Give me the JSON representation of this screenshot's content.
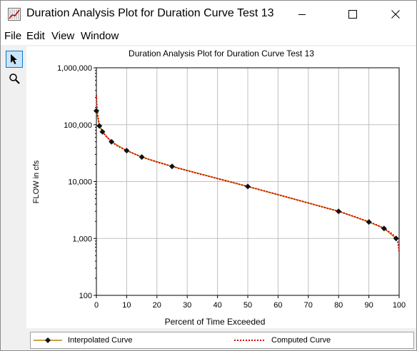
{
  "window": {
    "title": "Duration Analysis Plot for Duration Curve Test 13",
    "icon": "chart-app-icon",
    "controls": {
      "minimize": "minimize-icon",
      "maximize": "maximize-icon",
      "close": "close-icon"
    }
  },
  "menu": {
    "items": [
      "File",
      "Edit",
      "View",
      "Window"
    ]
  },
  "toolbar": {
    "tools": [
      "pointer-icon",
      "magnifier-icon"
    ]
  },
  "chart_data": {
    "type": "line",
    "title": "Duration Analysis Plot for Duration Curve Test 13",
    "xlabel": "Percent of Time Exceeded",
    "ylabel": "FLOW in cfs",
    "xlim": [
      0,
      100
    ],
    "ylim": [
      100,
      1000000
    ],
    "yscale": "log",
    "grid": true,
    "legend_position": "bottom",
    "x_ticks": [
      "0",
      "10",
      "20",
      "30",
      "40",
      "50",
      "60",
      "70",
      "80",
      "90",
      "100"
    ],
    "y_ticks": [
      "100",
      "1,000",
      "10,000",
      "100,000",
      "1,000,000"
    ],
    "series": [
      {
        "name": "Interpolated Curve",
        "color": "#b8860b",
        "marker": "diamond",
        "x": [
          0,
          1,
          2,
          5,
          10,
          15,
          25,
          50,
          80,
          90,
          95,
          99
        ],
        "y": [
          175000,
          95000,
          75000,
          50000,
          35000,
          27000,
          18500,
          8200,
          3000,
          1950,
          1500,
          1000
        ]
      },
      {
        "name": "Computed Curve",
        "color": "#e00000",
        "line_style": "dotted",
        "x": [
          0,
          0.1,
          0.3,
          0.5,
          1,
          2,
          3,
          5,
          7,
          10,
          15,
          20,
          25,
          30,
          40,
          50,
          60,
          70,
          80,
          85,
          90,
          93,
          95,
          97,
          98,
          99,
          99.5,
          99.8,
          100
        ],
        "y": [
          330000,
          240000,
          180000,
          140000,
          98000,
          76000,
          64000,
          50000,
          42000,
          35000,
          27000,
          22000,
          18500,
          15500,
          11300,
          8200,
          5900,
          4200,
          3000,
          2450,
          1950,
          1700,
          1500,
          1280,
          1160,
          1000,
          880,
          700,
          560
        ]
      }
    ]
  },
  "legend": {
    "items": [
      "Interpolated Curve",
      "Computed Curve"
    ]
  }
}
